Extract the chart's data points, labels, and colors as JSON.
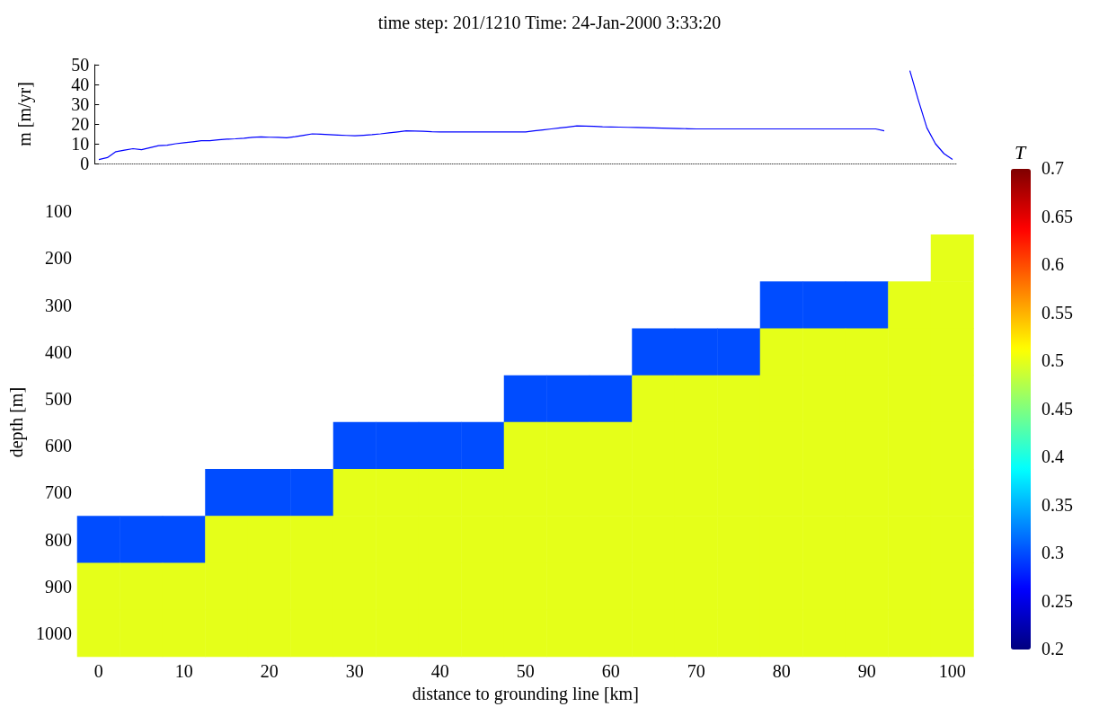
{
  "chart_data": [
    {
      "type": "line",
      "title": "time step: 201/1210 Time: 24-Jan-2000 3:33:20",
      "ylabel": "m [m/yr]",
      "categories": [
        null,
        null,
        null,
        null,
        null,
        null,
        null,
        null,
        null,
        null,
        null,
        null,
        null,
        null,
        null,
        null,
        null,
        null,
        null,
        null,
        null,
        null,
        null,
        null,
        null,
        null,
        null,
        null,
        null,
        null,
        null,
        null,
        null,
        null,
        null,
        null,
        null,
        null,
        null,
        null,
        null,
        null,
        null,
        null,
        null,
        null,
        null,
        null,
        null,
        null,
        null,
        null,
        null,
        null,
        null,
        null,
        null,
        null,
        null,
        null,
        null,
        null,
        null,
        null,
        null,
        null,
        null,
        null,
        null,
        null,
        null,
        null,
        null,
        null,
        null,
        null,
        null,
        null,
        null,
        null,
        null,
        null,
        null,
        null,
        null,
        null,
        null,
        null,
        null,
        null,
        null,
        null,
        null,
        null,
        null,
        null,
        null,
        null,
        null,
        null,
        null
      ],
      "series": [
        {
          "color": "#0000ff",
          "values": [
            2,
            3,
            6,
            6.8,
            7.5,
            7,
            8,
            9,
            9.3,
            10,
            10.5,
            11,
            11.5,
            11.5,
            12,
            12.3,
            12.5,
            12.8,
            13.2,
            13.5,
            13.3,
            13.2,
            13,
            13.6,
            14.3,
            15,
            14.8,
            14.6,
            14.4,
            14.2,
            14,
            14.3,
            14.6,
            15,
            15.5,
            16,
            16.5,
            16.4,
            16.3,
            16.1,
            16,
            16,
            16,
            16,
            16,
            16,
            16,
            16,
            16,
            16,
            16,
            16.5,
            17,
            17.5,
            18,
            18.5,
            19,
            18.9,
            18.8,
            18.6,
            18.5,
            18.4,
            18.3,
            18.2,
            18.1,
            18,
            17.9,
            17.8,
            17.7,
            17.6,
            17.5,
            17.5,
            17.5,
            17.5,
            17.5,
            17.5,
            17.5,
            17.5,
            17.5,
            17.5,
            17.5,
            17.5,
            17.5,
            17.5,
            17.5,
            17.5,
            17.5,
            17.5,
            17.5,
            17.5,
            17.5,
            17.5,
            16.5,
            null,
            null,
            null,
            null,
            null,
            null,
            null,
            null
          ]
        },
        {
          "color": "#0000ff",
          "values": [
            null,
            null,
            null,
            null,
            null,
            null,
            null,
            null,
            null,
            null,
            null,
            null,
            null,
            null,
            null,
            null,
            null,
            null,
            null,
            null,
            null,
            null,
            null,
            null,
            null,
            null,
            null,
            null,
            null,
            null,
            null,
            null,
            null,
            null,
            null,
            null,
            null,
            null,
            null,
            null,
            null,
            null,
            null,
            null,
            null,
            null,
            null,
            null,
            null,
            null,
            null,
            null,
            null,
            null,
            null,
            null,
            null,
            null,
            null,
            null,
            null,
            null,
            null,
            null,
            null,
            null,
            null,
            null,
            null,
            null,
            null,
            null,
            null,
            null,
            null,
            null,
            null,
            null,
            null,
            null,
            null,
            null,
            null,
            null,
            null,
            null,
            null,
            null,
            null,
            null,
            null,
            null,
            null,
            null,
            null,
            47,
            32,
            18,
            10,
            5,
            2
          ]
        }
      ],
      "ylim": [
        0,
        50
      ],
      "yticks": [
        0,
        10,
        20,
        30,
        40,
        50
      ],
      "tick_labels": "y",
      "ref_lines": [
        {
          "axis": "y",
          "value": 0,
          "line_style": "dotted",
          "color": "#000000"
        }
      ]
    },
    {
      "type": "heatmap",
      "xlabel": "distance to grounding line [km]",
      "ylabel": "depth [m]",
      "clabel": "T",
      "categories": [
        "0",
        null,
        "10",
        null,
        "20",
        null,
        "30",
        null,
        "40",
        null,
        "50",
        null,
        "60",
        null,
        "70",
        null,
        "80",
        null,
        "90",
        null,
        "100"
      ],
      "y_categories": [
        "100",
        "200",
        "300",
        "400",
        "500",
        "600",
        "700",
        "800",
        "900",
        "1000"
      ],
      "cells": [
        [
          null,
          null,
          null,
          null,
          null,
          null,
          null,
          null,
          null,
          null,
          null,
          null,
          null,
          null,
          null,
          null,
          null,
          null,
          null,
          null,
          null
        ],
        [
          null,
          null,
          null,
          null,
          null,
          null,
          null,
          null,
          null,
          null,
          null,
          null,
          null,
          null,
          null,
          null,
          null,
          null,
          null,
          null,
          0.5
        ],
        [
          null,
          null,
          null,
          null,
          null,
          null,
          null,
          null,
          null,
          null,
          null,
          null,
          null,
          null,
          null,
          null,
          0.3,
          0.3,
          0.3,
          0.5,
          0.5
        ],
        [
          null,
          null,
          null,
          null,
          null,
          null,
          null,
          null,
          null,
          null,
          null,
          null,
          null,
          0.3,
          0.3,
          0.3,
          0.5,
          0.5,
          0.5,
          0.5,
          0.5
        ],
        [
          null,
          null,
          null,
          null,
          null,
          null,
          null,
          null,
          null,
          null,
          0.3,
          0.3,
          0.3,
          0.5,
          0.5,
          0.5,
          0.5,
          0.5,
          0.5,
          0.5,
          0.5
        ],
        [
          null,
          null,
          null,
          null,
          null,
          null,
          0.3,
          0.3,
          0.3,
          0.3,
          0.5,
          0.5,
          0.5,
          0.5,
          0.5,
          0.5,
          0.5,
          0.5,
          0.5,
          0.5,
          0.5
        ],
        [
          null,
          null,
          null,
          0.3,
          0.3,
          0.3,
          0.5,
          0.5,
          0.5,
          0.5,
          0.5,
          0.5,
          0.5,
          0.5,
          0.5,
          0.5,
          0.5,
          0.5,
          0.5,
          0.5,
          0.5
        ],
        [
          0.3,
          0.3,
          0.3,
          0.5,
          0.5,
          0.5,
          0.5,
          0.5,
          0.5,
          0.5,
          0.5,
          0.5,
          0.5,
          0.5,
          0.5,
          0.5,
          0.5,
          0.5,
          0.5,
          0.5,
          0.5
        ],
        [
          0.5,
          0.5,
          0.5,
          0.5,
          0.5,
          0.5,
          0.5,
          0.5,
          0.5,
          0.5,
          0.5,
          0.5,
          0.5,
          0.5,
          0.5,
          0.5,
          0.5,
          0.5,
          0.5,
          0.5,
          0.5
        ],
        [
          0.5,
          0.5,
          0.5,
          0.5,
          0.5,
          0.5,
          0.5,
          0.5,
          0.5,
          0.5,
          0.5,
          0.5,
          0.5,
          0.5,
          0.5,
          0.5,
          0.5,
          0.5,
          0.5,
          0.5,
          0.5
        ]
      ],
      "clim": [
        0.2,
        0.7
      ],
      "cticks": [
        0.2,
        0.25,
        0.3,
        0.35,
        0.4,
        0.45,
        0.5,
        0.55,
        0.6,
        0.65,
        0.7
      ]
    }
  ]
}
